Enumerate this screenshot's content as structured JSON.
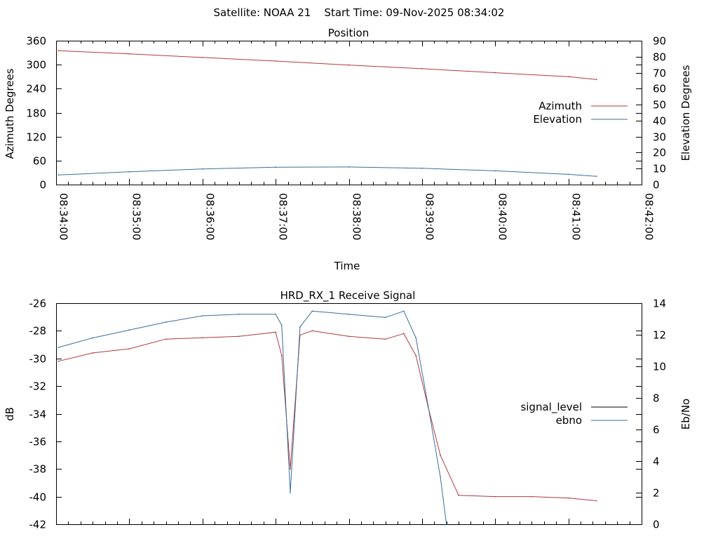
{
  "header": {
    "title": "Satellite: NOAA 21    Start Time: 09-Nov-2025 08:34:02"
  },
  "colors": {
    "azimuth": "#b03a3a",
    "elevation": "#3a6e9e",
    "signal_level_legend": "#000000",
    "signal_level_trace": "#b03a3a",
    "ebno": "#3a6e9e",
    "signal_green": "#2ca02c"
  },
  "chart_data": [
    {
      "type": "line",
      "title": "Position",
      "xlabel": "Time",
      "ylabel": "Azimuth Degrees",
      "y2label": "Elevation Degrees",
      "xlim": [
        "08:34:00",
        "08:42:00"
      ],
      "x_ticks": [
        "08:34:00",
        "08:35:00",
        "08:36:00",
        "08:37:00",
        "08:38:00",
        "08:39:00",
        "08:40:00",
        "08:41:00",
        "08:42:00"
      ],
      "ylim": [
        0,
        360
      ],
      "y_ticks": [
        "0",
        "60",
        "120",
        "180",
        "240",
        "300",
        "360"
      ],
      "y2lim": [
        0,
        90
      ],
      "y2_ticks": [
        "0",
        "10",
        "20",
        "30",
        "40",
        "50",
        "60",
        "70",
        "80",
        "90"
      ],
      "legend_position": "right",
      "series": [
        {
          "name": "Azimuth",
          "axis": "y",
          "x": [
            "08:34:02",
            "08:35:00",
            "08:36:00",
            "08:37:00",
            "08:38:00",
            "08:39:00",
            "08:40:00",
            "08:41:00",
            "08:41:23"
          ],
          "values": [
            335,
            327,
            318,
            309,
            299,
            290,
            280,
            270,
            263
          ]
        },
        {
          "name": "Elevation",
          "axis": "y2",
          "x": [
            "08:34:02",
            "08:35:00",
            "08:36:00",
            "08:37:00",
            "08:38:00",
            "08:39:00",
            "08:40:00",
            "08:41:00",
            "08:41:23"
          ],
          "values": [
            6,
            8,
            9.8,
            10.9,
            11,
            10.2,
            8.6,
            6.4,
            5.2
          ]
        }
      ]
    },
    {
      "type": "line",
      "title": "HRD_RX_1 Receive Signal",
      "ylabel": "dB",
      "y2label": "Eb/No",
      "xlim": [
        "08:34:00",
        "08:42:00"
      ],
      "ylim": [
        -42,
        -26
      ],
      "y_ticks": [
        "-26",
        "-28",
        "-30",
        "-32",
        "-34",
        "-36",
        "-38",
        "-40",
        "-42"
      ],
      "y2lim": [
        0,
        14
      ],
      "y2_ticks": [
        "0",
        "2",
        "4",
        "6",
        "8",
        "10",
        "12",
        "14"
      ],
      "legend_position": "right",
      "series": [
        {
          "name": "signal_level",
          "axis": "y",
          "x": [
            "08:34:02",
            "08:34:30",
            "08:35:00",
            "08:35:30",
            "08:36:00",
            "08:36:30",
            "08:37:00",
            "08:37:05",
            "08:37:12",
            "08:37:20",
            "08:37:30",
            "08:38:00",
            "08:38:30",
            "08:38:45",
            "08:38:55",
            "08:39:05",
            "08:39:15",
            "08:39:30",
            "08:40:00",
            "08:40:30",
            "08:41:00",
            "08:41:23"
          ],
          "values": [
            -30.2,
            -29.6,
            -29.3,
            -28.6,
            -28.5,
            -28.4,
            -28.1,
            -29.8,
            -38.0,
            -28.3,
            -28.0,
            -28.4,
            -28.6,
            -28.2,
            -29.8,
            -33.5,
            -37.0,
            -39.9,
            -40.0,
            -40.0,
            -40.1,
            -40.3
          ]
        },
        {
          "name": "ebno",
          "axis": "y2",
          "x": [
            "08:34:02",
            "08:34:30",
            "08:35:00",
            "08:35:30",
            "08:36:00",
            "08:36:30",
            "08:37:00",
            "08:37:05",
            "08:37:12",
            "08:37:20",
            "08:37:30",
            "08:38:00",
            "08:38:30",
            "08:38:45",
            "08:38:55",
            "08:39:05",
            "08:39:15",
            "08:39:20"
          ],
          "values": [
            11.2,
            11.8,
            12.3,
            12.8,
            13.2,
            13.3,
            13.3,
            12.6,
            2.0,
            12.5,
            13.5,
            13.3,
            13.1,
            13.5,
            11.8,
            7.5,
            3.0,
            0
          ]
        }
      ]
    }
  ]
}
